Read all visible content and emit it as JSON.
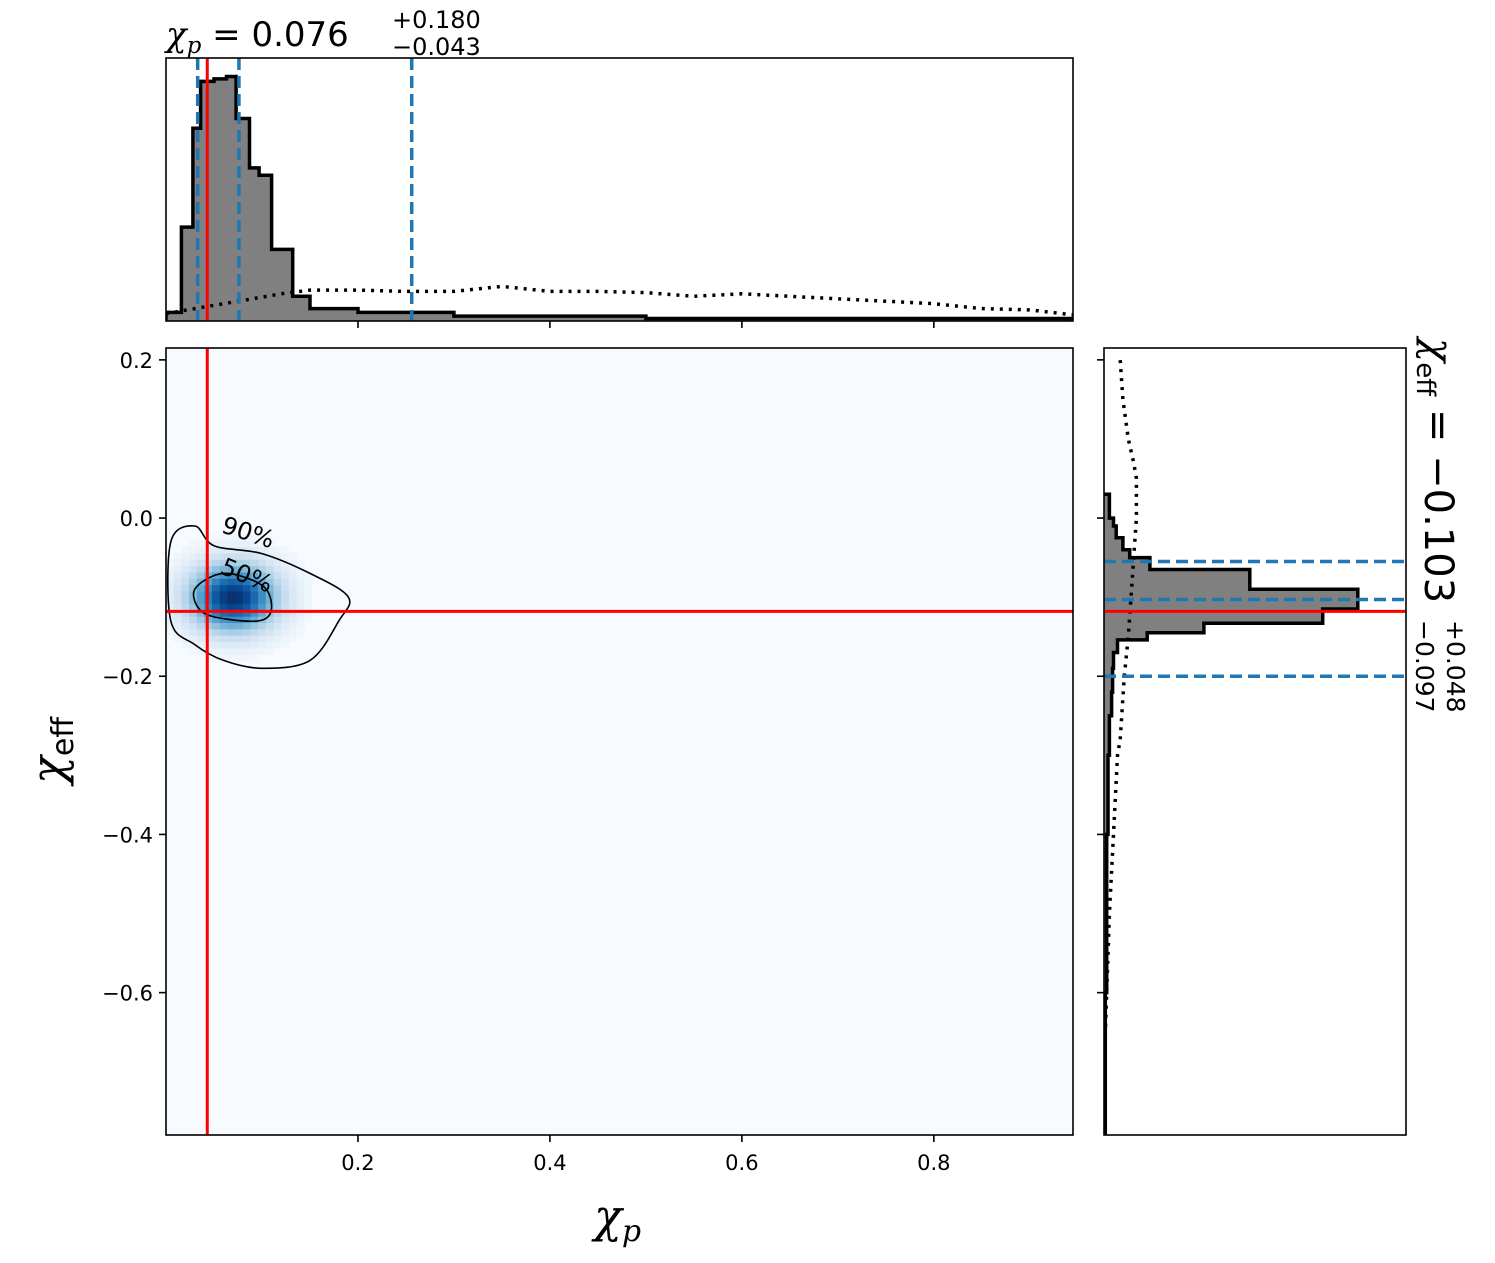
{
  "chart_data": {
    "type": "corner",
    "title_top": {
      "prefix": "χ",
      "prefix_sub": "p",
      "equals": " = ",
      "median": "0.076",
      "upper": "+0.180",
      "lower": "−0.043"
    },
    "title_right": {
      "prefix": "χ",
      "prefix_sub": "eff",
      "equals": " = ",
      "median": "−0.103",
      "upper": "+0.048",
      "lower": "−0.097"
    },
    "xlabel": {
      "symbol": "χ",
      "sub": "p"
    },
    "ylabel": {
      "symbol": "χ",
      "sub": "eff"
    },
    "xlim": [
      0.0,
      0.945
    ],
    "ylim": [
      -0.78,
      0.215
    ],
    "xticks": [
      0.2,
      0.4,
      0.6,
      0.8
    ],
    "xtick_labels": [
      "0.2",
      "0.4",
      "0.6",
      "0.8"
    ],
    "yticks": [
      0.2,
      0.0,
      -0.2,
      -0.4,
      -0.6
    ],
    "ytick_labels": [
      "0.2",
      "0.0",
      "−0.2",
      "−0.4",
      "−0.6"
    ],
    "truth": {
      "chi_p": 0.043,
      "chi_eff": -0.118,
      "color": "#ff0000"
    },
    "quantile_color": "#1f77b4",
    "chi_p_quantiles": [
      0.033,
      0.076,
      0.256
    ],
    "chi_eff_quantiles": [
      -0.2,
      -0.103,
      -0.055
    ],
    "hist_fill": "#808080",
    "chi_p_hist": {
      "edges": [
        0.0,
        0.016,
        0.028,
        0.036,
        0.05,
        0.063,
        0.073,
        0.087,
        0.097,
        0.11,
        0.132,
        0.15,
        0.2,
        0.3,
        0.5,
        0.945
      ],
      "density": [
        0.035,
        0.38,
        0.78,
        0.97,
        0.98,
        0.99,
        0.82,
        0.62,
        0.59,
        0.29,
        0.1,
        0.05,
        0.035,
        0.02,
        0.01
      ]
    },
    "chi_p_prior": {
      "x": [
        0.0,
        0.03,
        0.06,
        0.09,
        0.12,
        0.15,
        0.2,
        0.25,
        0.3,
        0.35,
        0.4,
        0.45,
        0.5,
        0.55,
        0.6,
        0.65,
        0.7,
        0.75,
        0.8,
        0.85,
        0.9,
        0.945
      ],
      "density": [
        0.03,
        0.05,
        0.07,
        0.09,
        0.11,
        0.125,
        0.125,
        0.12,
        0.12,
        0.14,
        0.12,
        0.12,
        0.115,
        0.1,
        0.11,
        0.1,
        0.09,
        0.08,
        0.07,
        0.05,
        0.045,
        0.025
      ]
    },
    "chi_eff_hist": {
      "edges": [
        -0.78,
        -0.6,
        -0.4,
        -0.3,
        -0.25,
        -0.22,
        -0.19,
        -0.17,
        -0.154,
        -0.145,
        -0.133,
        -0.115,
        -0.09,
        -0.065,
        -0.05,
        -0.04,
        -0.025,
        -0.01,
        0.0,
        0.03
      ],
      "density": [
        0.005,
        0.01,
        0.015,
        0.02,
        0.028,
        0.032,
        0.035,
        0.05,
        0.16,
        0.37,
        0.81,
        0.94,
        0.54,
        0.17,
        0.095,
        0.07,
        0.045,
        0.035,
        0.02
      ]
    },
    "chi_eff_prior": {
      "y": [
        -0.7,
        -0.6,
        -0.5,
        -0.4,
        -0.3,
        -0.28,
        -0.2,
        -0.15,
        -0.1,
        -0.05,
        0.0,
        0.05,
        0.07,
        0.1,
        0.15,
        0.2
      ],
      "density": [
        0.0,
        0.01,
        0.02,
        0.035,
        0.05,
        0.06,
        0.075,
        0.09,
        0.1,
        0.11,
        0.12,
        0.12,
        0.11,
        0.09,
        0.07,
        0.06
      ]
    },
    "heatmap": {
      "colormap": "Blues",
      "peak": {
        "chi_p": 0.07,
        "chi_eff": -0.1
      },
      "spread": {
        "chi_p": 0.032,
        "chi_eff": 0.03
      }
    },
    "contours": [
      {
        "label": "90%",
        "points": [
          [
            0.005,
            -0.03
          ],
          [
            0.03,
            -0.01
          ],
          [
            0.05,
            -0.035
          ],
          [
            0.1,
            -0.045
          ],
          [
            0.15,
            -0.07
          ],
          [
            0.19,
            -0.1
          ],
          [
            0.18,
            -0.13
          ],
          [
            0.15,
            -0.18
          ],
          [
            0.1,
            -0.19
          ],
          [
            0.06,
            -0.18
          ],
          [
            0.03,
            -0.16
          ],
          [
            0.005,
            -0.13
          ]
        ]
      },
      {
        "label": "50%",
        "points": [
          [
            0.06,
            -0.07
          ],
          [
            0.1,
            -0.085
          ],
          [
            0.11,
            -0.112
          ],
          [
            0.1,
            -0.129
          ],
          [
            0.065,
            -0.128
          ],
          [
            0.037,
            -0.118
          ],
          [
            0.03,
            -0.09
          ]
        ]
      }
    ]
  }
}
